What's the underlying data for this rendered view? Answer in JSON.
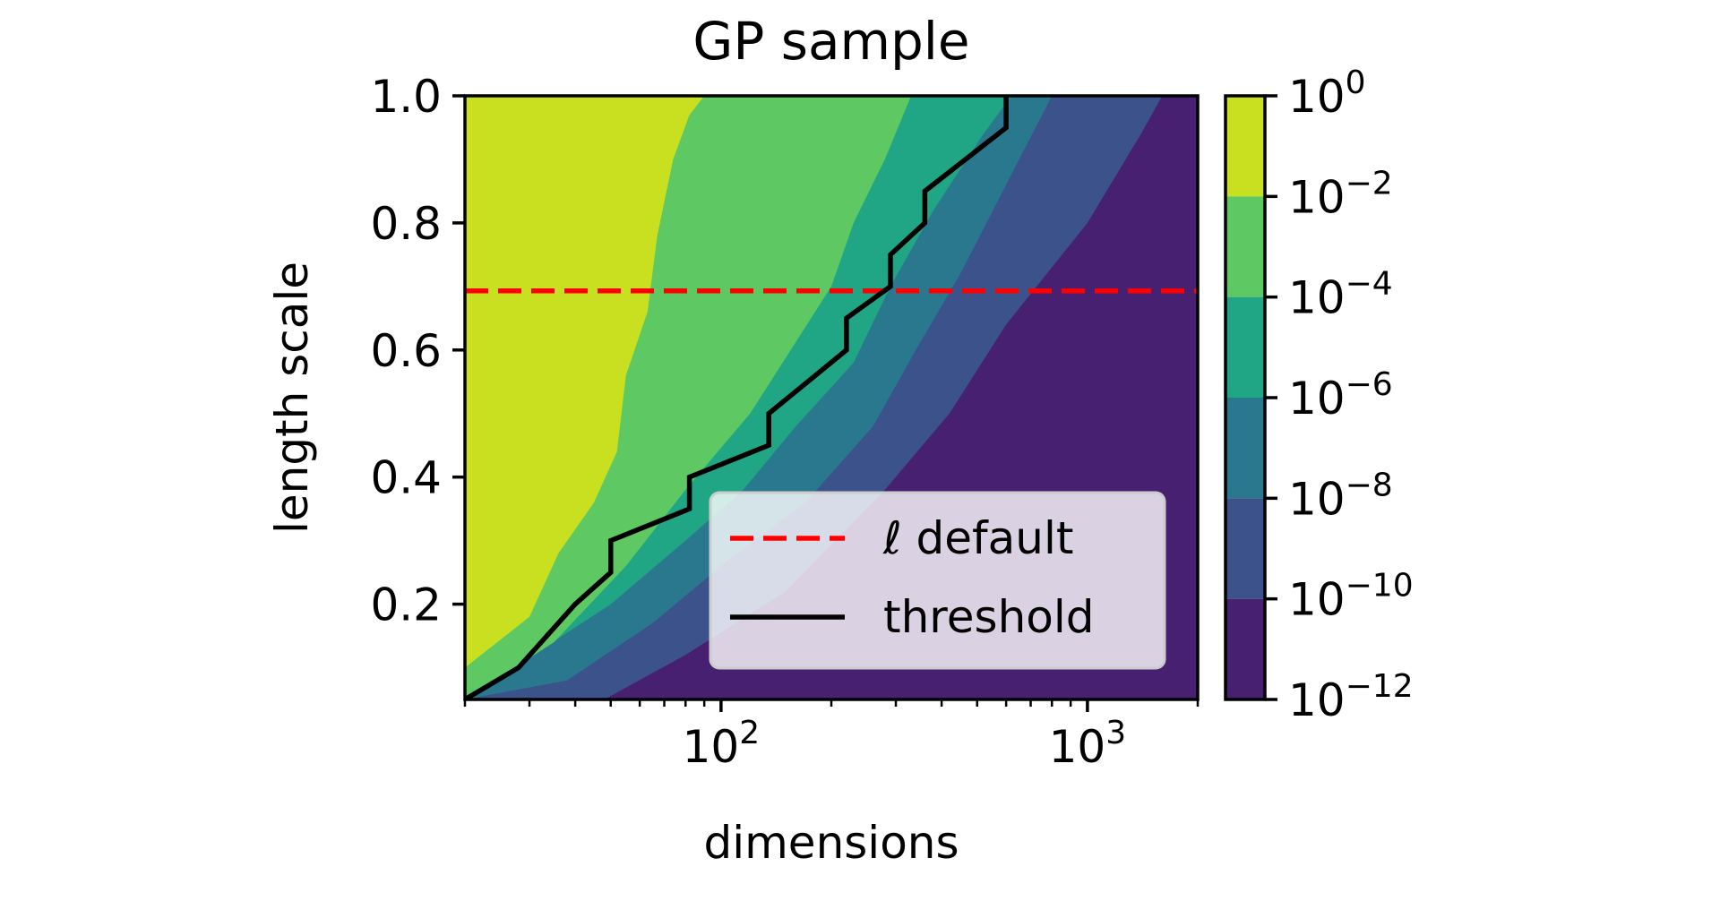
{
  "chart_data": {
    "type": "contour",
    "title": "GP sample",
    "xlabel": "dimensions",
    "ylabel": "length scale",
    "xscale": "log",
    "xlim": [
      20,
      2000
    ],
    "ylim": [
      0.05,
      1.0
    ],
    "x_ticks": [
      {
        "value": 100,
        "base": "10",
        "exp": "2"
      },
      {
        "value": 1000,
        "base": "10",
        "exp": "3"
      }
    ],
    "y_ticks": [
      {
        "value": 0.2,
        "label": "0.2"
      },
      {
        "value": 0.4,
        "label": "0.4"
      },
      {
        "value": 0.6,
        "label": "0.6"
      },
      {
        "value": 0.8,
        "label": "0.8"
      },
      {
        "value": 1.0,
        "label": "1.0"
      }
    ],
    "colorbar": {
      "scale": "log",
      "ticks": [
        {
          "exponent": 0,
          "base": "10",
          "exp": "0"
        },
        {
          "exponent": -2,
          "base": "10",
          "exp": "−2"
        },
        {
          "exponent": -4,
          "base": "10",
          "exp": "−4"
        },
        {
          "exponent": -6,
          "base": "10",
          "exp": "−6"
        },
        {
          "exponent": -8,
          "base": "10",
          "exp": "−8"
        },
        {
          "exponent": -10,
          "base": "10",
          "exp": "−10"
        },
        {
          "exponent": -12,
          "base": "10",
          "exp": "−12"
        }
      ],
      "bands": [
        {
          "from": -2,
          "to": 0,
          "color": "#c8e020"
        },
        {
          "from": -4,
          "to": -2,
          "color": "#5ec962"
        },
        {
          "from": -6,
          "to": -4,
          "color": "#21a685"
        },
        {
          "from": -8,
          "to": -6,
          "color": "#2a788e"
        },
        {
          "from": -10,
          "to": -8,
          "color": "#3b528b"
        },
        {
          "from": -12,
          "to": -10,
          "color": "#482071"
        }
      ]
    },
    "contour_boundaries": [
      {
        "level": "1e-2",
        "color": "#c8e020",
        "points": [
          [
            20,
            0.1
          ],
          [
            30,
            0.18
          ],
          [
            36,
            0.28
          ],
          [
            45,
            0.36
          ],
          [
            52,
            0.44
          ],
          [
            55,
            0.56
          ],
          [
            63,
            0.66
          ],
          [
            67,
            0.78
          ],
          [
            74,
            0.9
          ],
          [
            82,
            0.97
          ],
          [
            90,
            1.0
          ]
        ]
      },
      {
        "level": "1e-4",
        "color": "#5ec962",
        "points": [
          [
            20,
            0.05
          ],
          [
            35,
            0.14
          ],
          [
            55,
            0.26
          ],
          [
            80,
            0.38
          ],
          [
            120,
            0.5
          ],
          [
            155,
            0.6
          ],
          [
            200,
            0.7
          ],
          [
            230,
            0.8
          ],
          [
            280,
            0.9
          ],
          [
            330,
            1.0
          ]
        ]
      },
      {
        "level": "1e-6",
        "color": "#21a685",
        "points": [
          [
            20,
            0.05
          ],
          [
            50,
            0.2
          ],
          [
            80,
            0.3
          ],
          [
            115,
            0.38
          ],
          [
            160,
            0.48
          ],
          [
            230,
            0.58
          ],
          [
            290,
            0.7
          ],
          [
            380,
            0.82
          ],
          [
            520,
            0.94
          ],
          [
            620,
            1.0
          ]
        ]
      },
      {
        "level": "1e-8",
        "color": "#2a788e",
        "points": [
          [
            20,
            0.05
          ],
          [
            38,
            0.08
          ],
          [
            65,
            0.17
          ],
          [
            105,
            0.27
          ],
          [
            170,
            0.36
          ],
          [
            260,
            0.48
          ],
          [
            340,
            0.6
          ],
          [
            450,
            0.72
          ],
          [
            600,
            0.86
          ],
          [
            800,
            1.0
          ]
        ]
      },
      {
        "level": "1e-10",
        "color": "#3b528b",
        "points": [
          [
            20,
            0.05
          ],
          [
            48,
            0.05
          ],
          [
            80,
            0.12
          ],
          [
            150,
            0.22
          ],
          [
            280,
            0.38
          ],
          [
            420,
            0.5
          ],
          [
            600,
            0.64
          ],
          [
            1000,
            0.8
          ],
          [
            1400,
            0.94
          ],
          [
            1600,
            1.0
          ]
        ]
      }
    ],
    "series": [
      {
        "name": "ℓ default",
        "style": "dashed",
        "color": "#ff0000",
        "x": [
          20,
          2000
        ],
        "y": [
          0.693,
          0.693
        ]
      },
      {
        "name": "threshold",
        "style": "solid",
        "color": "#000000",
        "x": [
          20,
          28,
          40,
          50,
          50,
          82,
          82,
          135,
          135,
          220,
          220,
          290,
          290,
          360,
          360,
          600,
          600
        ],
        "y": [
          0.05,
          0.1,
          0.2,
          0.25,
          0.3,
          0.35,
          0.4,
          0.45,
          0.5,
          0.6,
          0.65,
          0.7,
          0.75,
          0.8,
          0.85,
          0.95,
          1.0
        ]
      }
    ],
    "legend": {
      "position": "lower right"
    }
  }
}
